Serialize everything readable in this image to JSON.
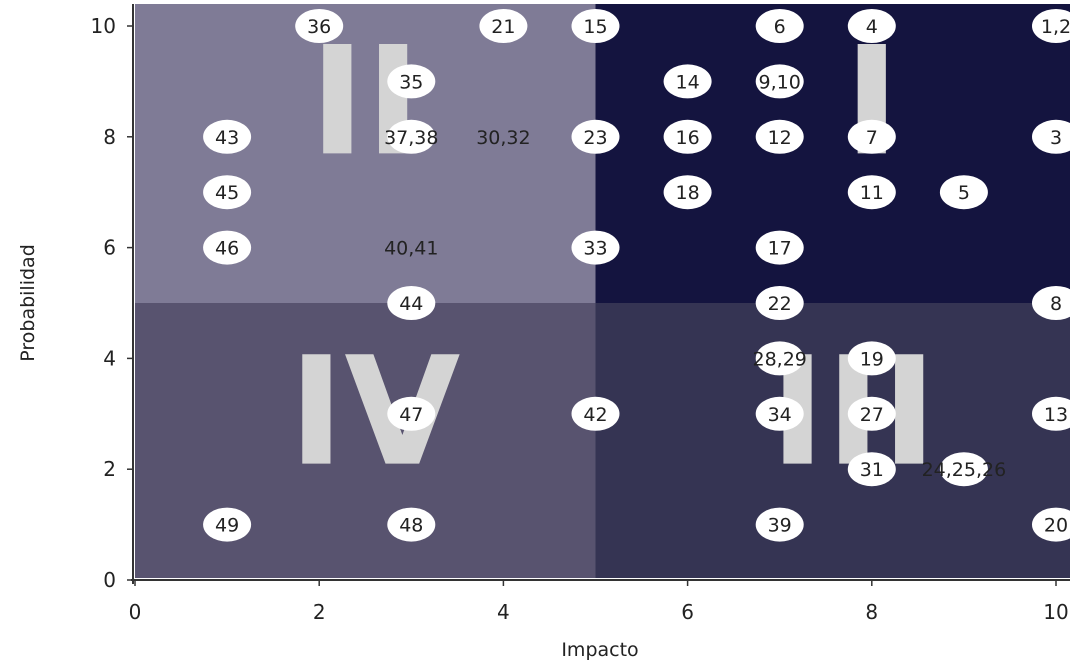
{
  "chart_data": {
    "type": "scatter",
    "xlabel": "Impacto",
    "ylabel": "Probabilidad",
    "xlim": [
      0,
      10
    ],
    "ylim": [
      0,
      10
    ],
    "x_ticks": [
      "0",
      "2",
      "4",
      "6",
      "8",
      "10"
    ],
    "y_ticks": [
      "0",
      "2",
      "4",
      "6",
      "8",
      "10"
    ],
    "grid": false,
    "quadrants": [
      {
        "label": "I",
        "x_range": [
          5,
          10
        ],
        "y_range": [
          5,
          10
        ],
        "color": "#14143f"
      },
      {
        "label": "II",
        "x_range": [
          0,
          5
        ],
        "y_range": [
          5,
          10
        ],
        "color": "#7f7b96"
      },
      {
        "label": "III",
        "x_range": [
          5,
          10
        ],
        "y_range": [
          0,
          5
        ],
        "color": "#353453"
      },
      {
        "label": "IV",
        "x_range": [
          0,
          5
        ],
        "y_range": [
          0,
          5
        ],
        "color": "#58536f"
      }
    ],
    "points": [
      {
        "label": "36",
        "x": 2,
        "y": 10,
        "circle": true
      },
      {
        "label": "21",
        "x": 4,
        "y": 10,
        "circle": true
      },
      {
        "label": "15",
        "x": 5,
        "y": 10,
        "circle": true
      },
      {
        "label": "6",
        "x": 7,
        "y": 10,
        "circle": true
      },
      {
        "label": "4",
        "x": 8,
        "y": 10,
        "circle": true
      },
      {
        "label": "1,2",
        "x": 10,
        "y": 10,
        "circle": true
      },
      {
        "label": "35",
        "x": 3,
        "y": 9,
        "circle": true
      },
      {
        "label": "14",
        "x": 6,
        "y": 9,
        "circle": true
      },
      {
        "label": "9,10",
        "x": 7,
        "y": 9,
        "circle": true
      },
      {
        "label": "43",
        "x": 1,
        "y": 8,
        "circle": true
      },
      {
        "label": "37,38",
        "x": 3,
        "y": 8,
        "circle": true
      },
      {
        "label": "30,32",
        "x": 4,
        "y": 8,
        "circle": false
      },
      {
        "label": "23",
        "x": 5,
        "y": 8,
        "circle": true
      },
      {
        "label": "16",
        "x": 6,
        "y": 8,
        "circle": true
      },
      {
        "label": "12",
        "x": 7,
        "y": 8,
        "circle": true
      },
      {
        "label": "7",
        "x": 8,
        "y": 8,
        "circle": true
      },
      {
        "label": "3",
        "x": 10,
        "y": 8,
        "circle": true
      },
      {
        "label": "45",
        "x": 1,
        "y": 7,
        "circle": true
      },
      {
        "label": "18",
        "x": 6,
        "y": 7,
        "circle": true
      },
      {
        "label": "11",
        "x": 8,
        "y": 7,
        "circle": true
      },
      {
        "label": "5",
        "x": 9,
        "y": 7,
        "circle": true
      },
      {
        "label": "46",
        "x": 1,
        "y": 6,
        "circle": true
      },
      {
        "label": "40,41",
        "x": 3,
        "y": 6,
        "circle": false
      },
      {
        "label": "33",
        "x": 5,
        "y": 6,
        "circle": true
      },
      {
        "label": "17",
        "x": 7,
        "y": 6,
        "circle": true
      },
      {
        "label": "44",
        "x": 3,
        "y": 5,
        "circle": true
      },
      {
        "label": "22",
        "x": 7,
        "y": 5,
        "circle": true
      },
      {
        "label": "8",
        "x": 10,
        "y": 5,
        "circle": true
      },
      {
        "label": "28,29",
        "x": 7,
        "y": 4,
        "circle": true
      },
      {
        "label": "19",
        "x": 8,
        "y": 4,
        "circle": true
      },
      {
        "label": "47",
        "x": 3,
        "y": 3,
        "circle": true
      },
      {
        "label": "42",
        "x": 5,
        "y": 3,
        "circle": true
      },
      {
        "label": "34",
        "x": 7,
        "y": 3,
        "circle": true
      },
      {
        "label": "27",
        "x": 8,
        "y": 3,
        "circle": true
      },
      {
        "label": "13",
        "x": 10,
        "y": 3,
        "circle": true
      },
      {
        "label": "31",
        "x": 8,
        "y": 2,
        "circle": true
      },
      {
        "label": "24,25,26",
        "x": 9,
        "y": 2,
        "circle": true
      },
      {
        "label": "49",
        "x": 1,
        "y": 1,
        "circle": true
      },
      {
        "label": "48",
        "x": 3,
        "y": 1,
        "circle": true
      },
      {
        "label": "39",
        "x": 7,
        "y": 1,
        "circle": true
      },
      {
        "label": "20",
        "x": 10,
        "y": 1,
        "circle": true
      }
    ]
  }
}
